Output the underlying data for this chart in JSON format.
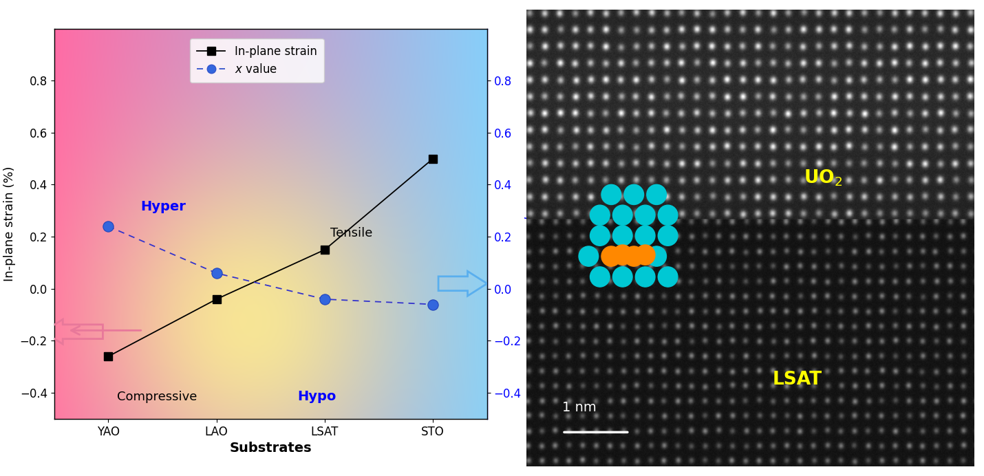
{
  "substrates": [
    "YAO",
    "LAO",
    "LSAT",
    "STO"
  ],
  "x_positions": [
    0,
    1,
    2,
    3
  ],
  "strain_values": [
    -0.26,
    -0.04,
    0.15,
    0.5
  ],
  "x_values": [
    0.24,
    0.06,
    -0.04,
    -0.06
  ],
  "strain_color": "#000000",
  "x_value_color": "#0000ff",
  "ylim": [
    -0.5,
    1.0
  ],
  "yticks": [
    -0.4,
    -0.2,
    0.0,
    0.2,
    0.4,
    0.6,
    0.8
  ],
  "ylabel_left": "In-plane strain (%)",
  "ylabel_right": "x value",
  "xlabel": "Substrates",
  "legend_strain_label": "In-plane strain",
  "legend_x_label": "x value",
  "annotation_hyper": "Hyper",
  "annotation_hypo": "Hypo",
  "annotation_compressive": "Compressive",
  "annotation_tensile": "Tensile",
  "pink": [
    1.0,
    0.42,
    0.65
  ],
  "blue": [
    0.53,
    0.81,
    0.98
  ],
  "yellow": [
    1.0,
    0.95,
    0.55
  ],
  "left_arrow_color": "#e8789a",
  "right_arrow_color": "#5aafee"
}
